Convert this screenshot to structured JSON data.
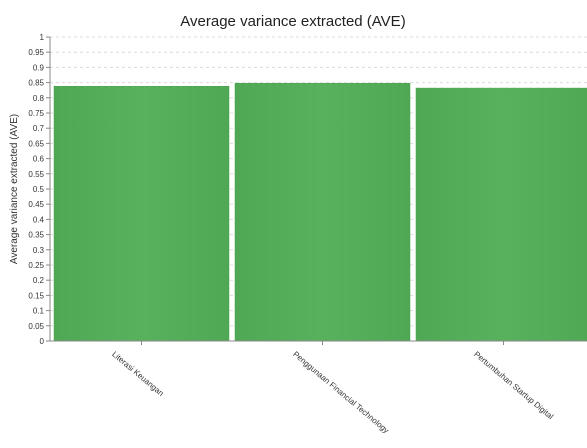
{
  "chart_data": {
    "type": "bar",
    "title": "Average variance extracted (AVE)",
    "xlabel": "",
    "ylabel": "Average variance extracted (AVE)",
    "ylim": [
      0,
      1
    ],
    "y_ticks": [
      "0",
      "0.05",
      "0.1",
      "0.15",
      "0.2",
      "0.25",
      "0.3",
      "0.35",
      "0.4",
      "0.45",
      "0.5",
      "0.55",
      "0.6",
      "0.65",
      "0.7",
      "0.75",
      "0.8",
      "0.85",
      "0.9",
      "0.95",
      "1"
    ],
    "categories": [
      "Literasi Keuangan",
      "Penggunaan Financial Technology",
      "Pertumbuhan Startup Digital"
    ],
    "values": [
      0.838,
      0.848,
      0.832
    ],
    "grid": true,
    "legend": "none",
    "colors": {
      "bar": "#55b05a",
      "bar_edge": "#4aa24f"
    }
  }
}
